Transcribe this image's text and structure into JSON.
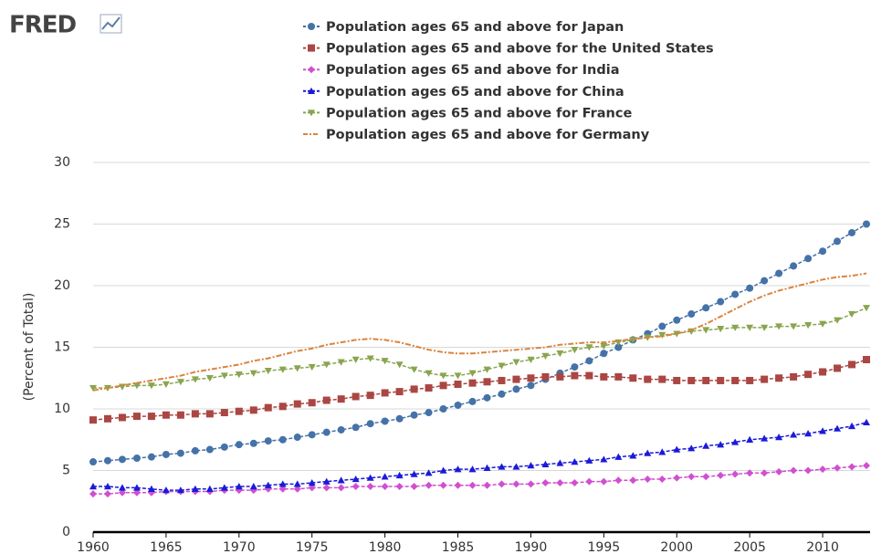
{
  "chart_data": {
    "type": "line",
    "logo": "FRED",
    "y_label": "(Percent of Total)",
    "x": [
      1960,
      1961,
      1962,
      1963,
      1964,
      1965,
      1966,
      1967,
      1968,
      1969,
      1970,
      1971,
      1972,
      1973,
      1974,
      1975,
      1976,
      1977,
      1978,
      1979,
      1980,
      1981,
      1982,
      1983,
      1984,
      1985,
      1986,
      1987,
      1988,
      1989,
      1990,
      1991,
      1992,
      1993,
      1994,
      1995,
      1996,
      1997,
      1998,
      1999,
      2000,
      2001,
      2002,
      2003,
      2004,
      2005,
      2006,
      2007,
      2008,
      2009,
      2010,
      2011,
      2012,
      2013
    ],
    "xlim": [
      1960,
      2013
    ],
    "xticks": [
      1960,
      1965,
      1970,
      1975,
      1980,
      1985,
      1990,
      1995,
      2000,
      2005,
      2010
    ],
    "ylim": [
      0,
      30
    ],
    "yticks": [
      0,
      5,
      10,
      15,
      20,
      25,
      30
    ],
    "grid": true,
    "legend": "top",
    "series": [
      {
        "name": "Population ages 65 and above for Japan",
        "color": "#4572a7",
        "marker": "circle",
        "values": [
          5.7,
          5.8,
          5.9,
          6.0,
          6.1,
          6.3,
          6.4,
          6.6,
          6.7,
          6.9,
          7.1,
          7.2,
          7.4,
          7.5,
          7.7,
          7.9,
          8.1,
          8.3,
          8.5,
          8.8,
          9.0,
          9.2,
          9.5,
          9.7,
          10.0,
          10.3,
          10.6,
          10.9,
          11.2,
          11.6,
          11.9,
          12.4,
          12.9,
          13.4,
          13.9,
          14.5,
          15.0,
          15.6,
          16.1,
          16.7,
          17.2,
          17.7,
          18.2,
          18.7,
          19.3,
          19.8,
          20.4,
          21.0,
          21.6,
          22.2,
          22.8,
          23.6,
          24.3,
          25.0
        ]
      },
      {
        "name": "Population ages 65 and above for the United States",
        "color": "#aa4643",
        "marker": "square",
        "values": [
          9.1,
          9.2,
          9.3,
          9.4,
          9.4,
          9.5,
          9.5,
          9.6,
          9.6,
          9.7,
          9.8,
          9.9,
          10.1,
          10.2,
          10.4,
          10.5,
          10.7,
          10.8,
          11.0,
          11.1,
          11.3,
          11.4,
          11.6,
          11.7,
          11.9,
          12.0,
          12.1,
          12.2,
          12.3,
          12.4,
          12.5,
          12.6,
          12.6,
          12.7,
          12.7,
          12.6,
          12.6,
          12.5,
          12.4,
          12.4,
          12.3,
          12.3,
          12.3,
          12.3,
          12.3,
          12.3,
          12.4,
          12.5,
          12.6,
          12.8,
          13.0,
          13.3,
          13.6,
          14.0
        ]
      },
      {
        "name": "Population ages 65 and above for India",
        "color": "#d04fd0",
        "marker": "diamond",
        "values": [
          3.1,
          3.1,
          3.2,
          3.2,
          3.2,
          3.3,
          3.3,
          3.3,
          3.3,
          3.4,
          3.4,
          3.4,
          3.5,
          3.5,
          3.5,
          3.6,
          3.6,
          3.6,
          3.7,
          3.7,
          3.7,
          3.7,
          3.7,
          3.8,
          3.8,
          3.8,
          3.8,
          3.8,
          3.9,
          3.9,
          3.9,
          4.0,
          4.0,
          4.0,
          4.1,
          4.1,
          4.2,
          4.2,
          4.3,
          4.3,
          4.4,
          4.5,
          4.5,
          4.6,
          4.7,
          4.8,
          4.8,
          4.9,
          5.0,
          5.0,
          5.1,
          5.2,
          5.3,
          5.4
        ]
      },
      {
        "name": "Population ages 65 and above for China",
        "color": "#1a1ad8",
        "marker": "triangle",
        "values": [
          3.7,
          3.7,
          3.6,
          3.6,
          3.5,
          3.4,
          3.4,
          3.5,
          3.5,
          3.6,
          3.7,
          3.7,
          3.8,
          3.9,
          3.9,
          4.0,
          4.1,
          4.2,
          4.3,
          4.4,
          4.5,
          4.6,
          4.7,
          4.8,
          5.0,
          5.1,
          5.1,
          5.2,
          5.3,
          5.3,
          5.4,
          5.5,
          5.6,
          5.7,
          5.8,
          5.9,
          6.1,
          6.2,
          6.4,
          6.5,
          6.7,
          6.8,
          7.0,
          7.1,
          7.3,
          7.5,
          7.6,
          7.7,
          7.9,
          8.0,
          8.2,
          8.4,
          8.6,
          8.9
        ]
      },
      {
        "name": "Population ages 65 and above for France",
        "color": "#89a54e",
        "marker": "triangle-down",
        "values": [
          11.7,
          11.7,
          11.8,
          11.9,
          11.9,
          12.0,
          12.2,
          12.4,
          12.5,
          12.7,
          12.8,
          12.9,
          13.1,
          13.2,
          13.3,
          13.4,
          13.6,
          13.8,
          14.0,
          14.1,
          13.9,
          13.6,
          13.2,
          12.9,
          12.7,
          12.7,
          12.9,
          13.2,
          13.5,
          13.8,
          14.0,
          14.3,
          14.5,
          14.8,
          15.0,
          15.1,
          15.4,
          15.6,
          15.8,
          16.0,
          16.1,
          16.3,
          16.4,
          16.5,
          16.6,
          16.6,
          16.6,
          16.7,
          16.7,
          16.8,
          16.9,
          17.2,
          17.7,
          18.2
        ]
      },
      {
        "name": "Population ages 65 and above for Germany",
        "color": "#db843d",
        "marker": "none",
        "values": [
          11.5,
          11.7,
          11.9,
          12.1,
          12.3,
          12.5,
          12.7,
          13.0,
          13.2,
          13.4,
          13.6,
          13.9,
          14.1,
          14.4,
          14.7,
          14.9,
          15.2,
          15.4,
          15.6,
          15.7,
          15.6,
          15.4,
          15.1,
          14.8,
          14.6,
          14.5,
          14.5,
          14.6,
          14.7,
          14.8,
          14.9,
          15.0,
          15.2,
          15.3,
          15.4,
          15.4,
          15.5,
          15.7,
          15.8,
          15.9,
          16.1,
          16.4,
          16.9,
          17.5,
          18.1,
          18.7,
          19.2,
          19.6,
          19.9,
          20.2,
          20.5,
          20.7,
          20.8,
          21.0
        ]
      }
    ]
  }
}
